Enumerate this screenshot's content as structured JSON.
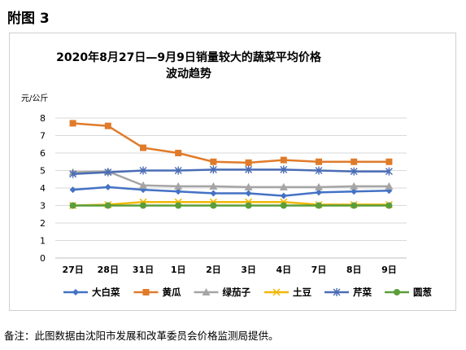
{
  "figure_label": "附图 3",
  "note": "备注：此图数据由沈阳市发展和改革委员会价格监测局提供。",
  "colors": {
    "大白菜": "#4472c4",
    "黄瓜": "#e07b2a",
    "绿茄子": "#a5a5a5",
    "土豆": "#f2b705",
    "芹菜": "#4a6db5",
    "圆葱": "#5a9e3a"
  },
  "chart_data": {
    "type": "line",
    "title_line1": "2020年8月27日—9月9日销量较大的蔬菜平均价格",
    "title_line2": "波动趋势",
    "ylabel": "元/公斤",
    "xlabel": "",
    "ylim": [
      0,
      8
    ],
    "yticks": [
      0,
      1,
      2,
      3,
      4,
      5,
      6,
      7,
      8
    ],
    "grid": "horizontal",
    "legend_position": "bottom",
    "categories": [
      "27日",
      "28日",
      "31日",
      "1日",
      "2日",
      "3日",
      "4日",
      "7日",
      "8日",
      "9日"
    ],
    "series": [
      {
        "name": "大白菜",
        "marker": "diamond",
        "values": [
          3.9,
          4.05,
          3.9,
          3.8,
          3.7,
          3.7,
          3.55,
          3.75,
          3.8,
          3.85
        ]
      },
      {
        "name": "黄瓜",
        "marker": "square",
        "values": [
          7.7,
          7.55,
          6.3,
          6.0,
          5.5,
          5.45,
          5.6,
          5.5,
          5.5,
          5.5
        ]
      },
      {
        "name": "绿茄子",
        "marker": "triangle",
        "values": [
          4.9,
          4.95,
          4.15,
          4.1,
          4.1,
          4.05,
          4.05,
          4.05,
          4.1,
          4.1
        ]
      },
      {
        "name": "土豆",
        "marker": "x",
        "values": [
          3.0,
          3.05,
          3.2,
          3.2,
          3.2,
          3.2,
          3.2,
          3.05,
          3.05,
          3.05
        ]
      },
      {
        "name": "芹菜",
        "marker": "star",
        "values": [
          4.8,
          4.9,
          5.0,
          5.0,
          5.05,
          5.05,
          5.05,
          5.0,
          4.95,
          4.95
        ]
      },
      {
        "name": "圆葱",
        "marker": "circle",
        "values": [
          3.0,
          3.0,
          3.0,
          3.0,
          3.0,
          3.0,
          3.0,
          3.0,
          3.0,
          3.0
        ]
      }
    ]
  }
}
